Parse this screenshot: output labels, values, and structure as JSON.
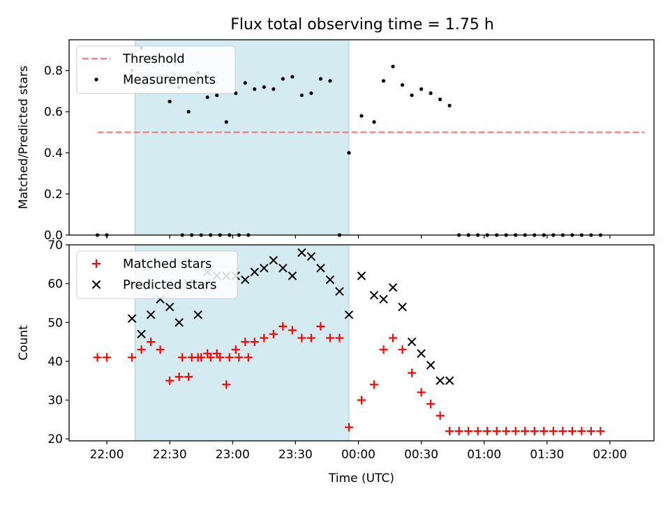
{
  "title": "Flux total observing time = 1.75 h",
  "chart_data": [
    {
      "type": "scatter",
      "ylabel": "Matched/Predicted stars",
      "xlabel": "",
      "xlim": [
        -71,
        22
      ],
      "ylim": [
        0,
        0.95
      ],
      "yticks": [
        0.0,
        0.2,
        0.4,
        0.6,
        0.8
      ],
      "ytick_labels": [
        "0.0",
        "0.2",
        "0.4",
        "0.6",
        "0.8"
      ],
      "shaded_interval": [
        -60.5,
        -26.5
      ],
      "legend_position": "upper-left",
      "legend": [
        "Threshold",
        "Measurements"
      ],
      "threshold": {
        "name": "Threshold",
        "value": 0.5,
        "x": [
          -66.5,
          20.5
        ],
        "color": "#f08080",
        "style": "dashed"
      },
      "series": [
        {
          "name": "Measurements",
          "marker": "dot",
          "color": "#000000",
          "x": [
            -66.5,
            -65,
            -53,
            -51.5,
            -50,
            -48.5,
            -47,
            -45.5,
            -44,
            -42.5,
            -61,
            -59.5,
            -58,
            -56.5,
            -55,
            -53.5,
            -52,
            -50.5,
            -49,
            -47.5,
            -46,
            -44.5,
            -43,
            -41.5,
            -40,
            -38.5,
            -37,
            -35.5,
            -34,
            -32.5,
            -31,
            -29.5,
            -28,
            -26.5,
            -24.5,
            -22.5,
            -21,
            -19.5,
            -18,
            -16.5,
            -15,
            -13.5,
            -12,
            -10.5,
            -9,
            -7.5,
            -6,
            -4.5,
            -3,
            -1.5,
            0,
            1.5,
            3,
            4.5,
            6,
            7.5,
            9,
            10.5,
            12,
            13.5
          ],
          "y": [
            0,
            0,
            0,
            0,
            0,
            0,
            0,
            0,
            0,
            0,
            0.8,
            0.91,
            0.86,
            0.77,
            0.65,
            0.72,
            0.6,
            0.79,
            0.67,
            0.68,
            0.55,
            0.69,
            0.74,
            0.71,
            0.72,
            0.71,
            0.76,
            0.77,
            0.68,
            0.69,
            0.76,
            0.75,
            0,
            0.4,
            0.58,
            0.55,
            0.75,
            0.82,
            0.73,
            0.68,
            0.71,
            0.69,
            0.66,
            0.63,
            0,
            0,
            0,
            0,
            0,
            0,
            0,
            0,
            0,
            0,
            0,
            0,
            0,
            0,
            0,
            0
          ]
        }
      ]
    },
    {
      "type": "scatter",
      "xlabel": "Time (UTC)",
      "ylabel": "Count",
      "xlim": [
        -71,
        22
      ],
      "ylim": [
        19.5,
        70
      ],
      "yticks": [
        20,
        30,
        40,
        50,
        60,
        70
      ],
      "ytick_labels": [
        "20",
        "30",
        "40",
        "50",
        "60",
        "70"
      ],
      "xticks": [
        -65,
        -55,
        -45,
        -35,
        -25,
        -15,
        -5,
        5,
        15
      ],
      "xtick_labels": [
        "22:00",
        "22:30",
        "23:00",
        "23:30",
        "00:00",
        "00:30",
        "01:00",
        "01:30",
        "02:00"
      ],
      "shaded_interval": [
        -60.5,
        -26.5
      ],
      "legend_position": "upper-left",
      "legend": [
        "Matched stars",
        "Predicted stars"
      ],
      "series": [
        {
          "name": "Matched stars",
          "marker": "plus",
          "color": "#ff0000",
          "x": [
            -66.5,
            -65,
            -53,
            -51.5,
            -50,
            -48.5,
            -47,
            -45.5,
            -44,
            -42.5,
            -61,
            -59.5,
            -58,
            -56.5,
            -55,
            -53.5,
            -52,
            -50.5,
            -49,
            -47.5,
            -46,
            -44.5,
            -43,
            -41.5,
            -40,
            -38.5,
            -37,
            -35.5,
            -34,
            -32.5,
            -31,
            -29.5,
            -28,
            -26.5,
            -24.5,
            -22.5,
            -21,
            -19.5,
            -18,
            -16.5,
            -15,
            -13.5,
            -12,
            -10.5,
            -9,
            -7.5,
            -6,
            -4.5,
            -3,
            -1.5,
            0,
            1.5,
            3,
            4.5,
            6,
            7.5,
            9,
            10.5,
            12,
            13.5
          ],
          "y": [
            41,
            41,
            41,
            41,
            41,
            41,
            41,
            41,
            41,
            41,
            41,
            43,
            45,
            43,
            35,
            36,
            36,
            41,
            42,
            42,
            34,
            43,
            45,
            45,
            46,
            47,
            49,
            48,
            46,
            46,
            49,
            46,
            46,
            23,
            30,
            34,
            43,
            46,
            43,
            37,
            32,
            29,
            26,
            22,
            22,
            22,
            22,
            22,
            22,
            22,
            22,
            22,
            22,
            22,
            22,
            22,
            22,
            22,
            22,
            22
          ]
        },
        {
          "name": "Predicted stars",
          "marker": "x",
          "color": "#000000",
          "x": [
            -61,
            -59.5,
            -58,
            -56.5,
            -55,
            -53.5,
            -52,
            -50.5,
            -49,
            -47.5,
            -46,
            -44.5,
            -43,
            -41.5,
            -40,
            -38.5,
            -37,
            -35.5,
            -34,
            -32.5,
            -31,
            -29.5,
            -28,
            -26.5,
            -24.5,
            -22.5,
            -21,
            -19.5,
            -18,
            -16.5,
            -15,
            -13.5,
            -12,
            -10.5
          ],
          "y": [
            51,
            47,
            52,
            56,
            54,
            50,
            60,
            52,
            63,
            62,
            62,
            62,
            61,
            63,
            64,
            66,
            64,
            62,
            68,
            67,
            64,
            61,
            58,
            52,
            62,
            57,
            56,
            59,
            54,
            45,
            42,
            39,
            35,
            35
          ]
        }
      ]
    }
  ]
}
